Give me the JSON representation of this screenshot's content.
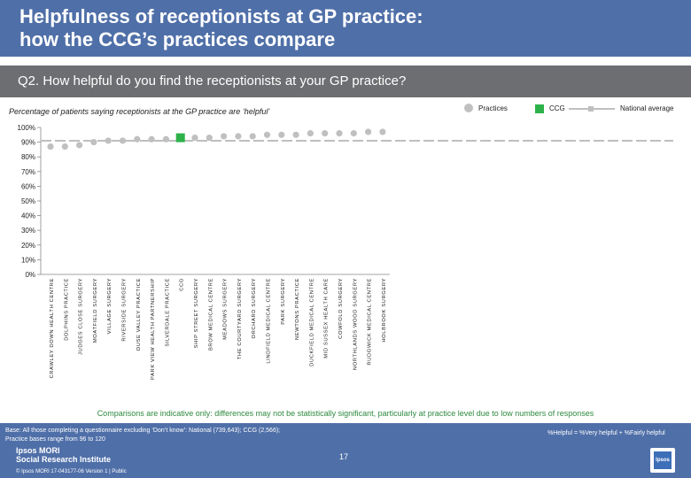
{
  "header": {
    "title": "Helpfulness of receptionists at GP practice:\nhow the CCG’s practices compare",
    "question": "Q2. How helpful do you find the receptionists at your GP practice?"
  },
  "subtitle": "Percentage of patients saying receptionists at the GP practice are ‘helpful’",
  "legend": {
    "practices": "Practices",
    "ccg": "CCG",
    "national": "National average"
  },
  "colors": {
    "practice": "#c0c0c0",
    "ccg": "#2db24a",
    "national": "#bfbfbf",
    "header": "#4f6fa8"
  },
  "chart_data": {
    "type": "scatter",
    "title": "",
    "xlabel": "",
    "ylabel": "",
    "ylim": [
      0,
      100
    ],
    "y_ticks": [
      0,
      10,
      20,
      30,
      40,
      50,
      60,
      70,
      80,
      90,
      100
    ],
    "y_tick_labels": [
      "0%",
      "10%",
      "20%",
      "30%",
      "40%",
      "50%",
      "60%",
      "70%",
      "80%",
      "90%",
      "100%"
    ],
    "national_average": 91,
    "categories": [
      "CRAWLEY DOWN HEALTH CENTRE",
      "DOLPHINS PRACTICE",
      "JUDGES CLOSE SURGERY",
      "MOATFIELD SURGERY",
      "VILLAGE SURGERY",
      "RIVERSIDE SURGERY",
      "OUSE VALLEY PRACTICE",
      "PARK VIEW HEALTH PARTNERSHIP",
      "SILVERDALE PRACTICE",
      "CCG",
      "SHIP STREET SURGERY",
      "BROW MEDICAL CENTRE",
      "MEADOWS SURGERY",
      "THE COURTYARD SURGERY",
      "ORCHARD SURGERY",
      "LINDFIELD MEDICAL CENTRE",
      "PARK SURGERY",
      "NEWTONS PRACTICE",
      "DUCKFIELD MEDICAL CENTRE",
      "MID SUSSEX HEALTH CARE",
      "COWFOLD SURGERY",
      "NORTHLANDS WOOD SURGERY",
      "RUDGWICK MEDICAL CENTRE",
      "HOLBROOK SURGERY"
    ],
    "values": [
      87,
      87,
      88,
      90,
      91,
      91,
      92,
      92,
      92,
      93,
      93,
      93,
      94,
      94,
      94,
      95,
      95,
      95,
      96,
      96,
      96,
      96,
      97,
      97
    ],
    "ccg_index": 9
  },
  "note": "Comparisons are indicative only: differences may not be statistically significant, particularly at practice level due to low numbers of responses",
  "footer": {
    "base": "Base: All those completing a questionnaire excluding ‘Don’t know’: National (739,643); CCG (2,566);\nPractice bases range from 96 to 120",
    "definition": "%Helpful = %Very helpful + %Fairly helpful",
    "page": "17",
    "brand": "Ipsos MORI\nSocial Research Institute",
    "copyright": "© Ipsos MORI     17-043177-06 Version 1 | Public",
    "logo": "Ipsos"
  }
}
